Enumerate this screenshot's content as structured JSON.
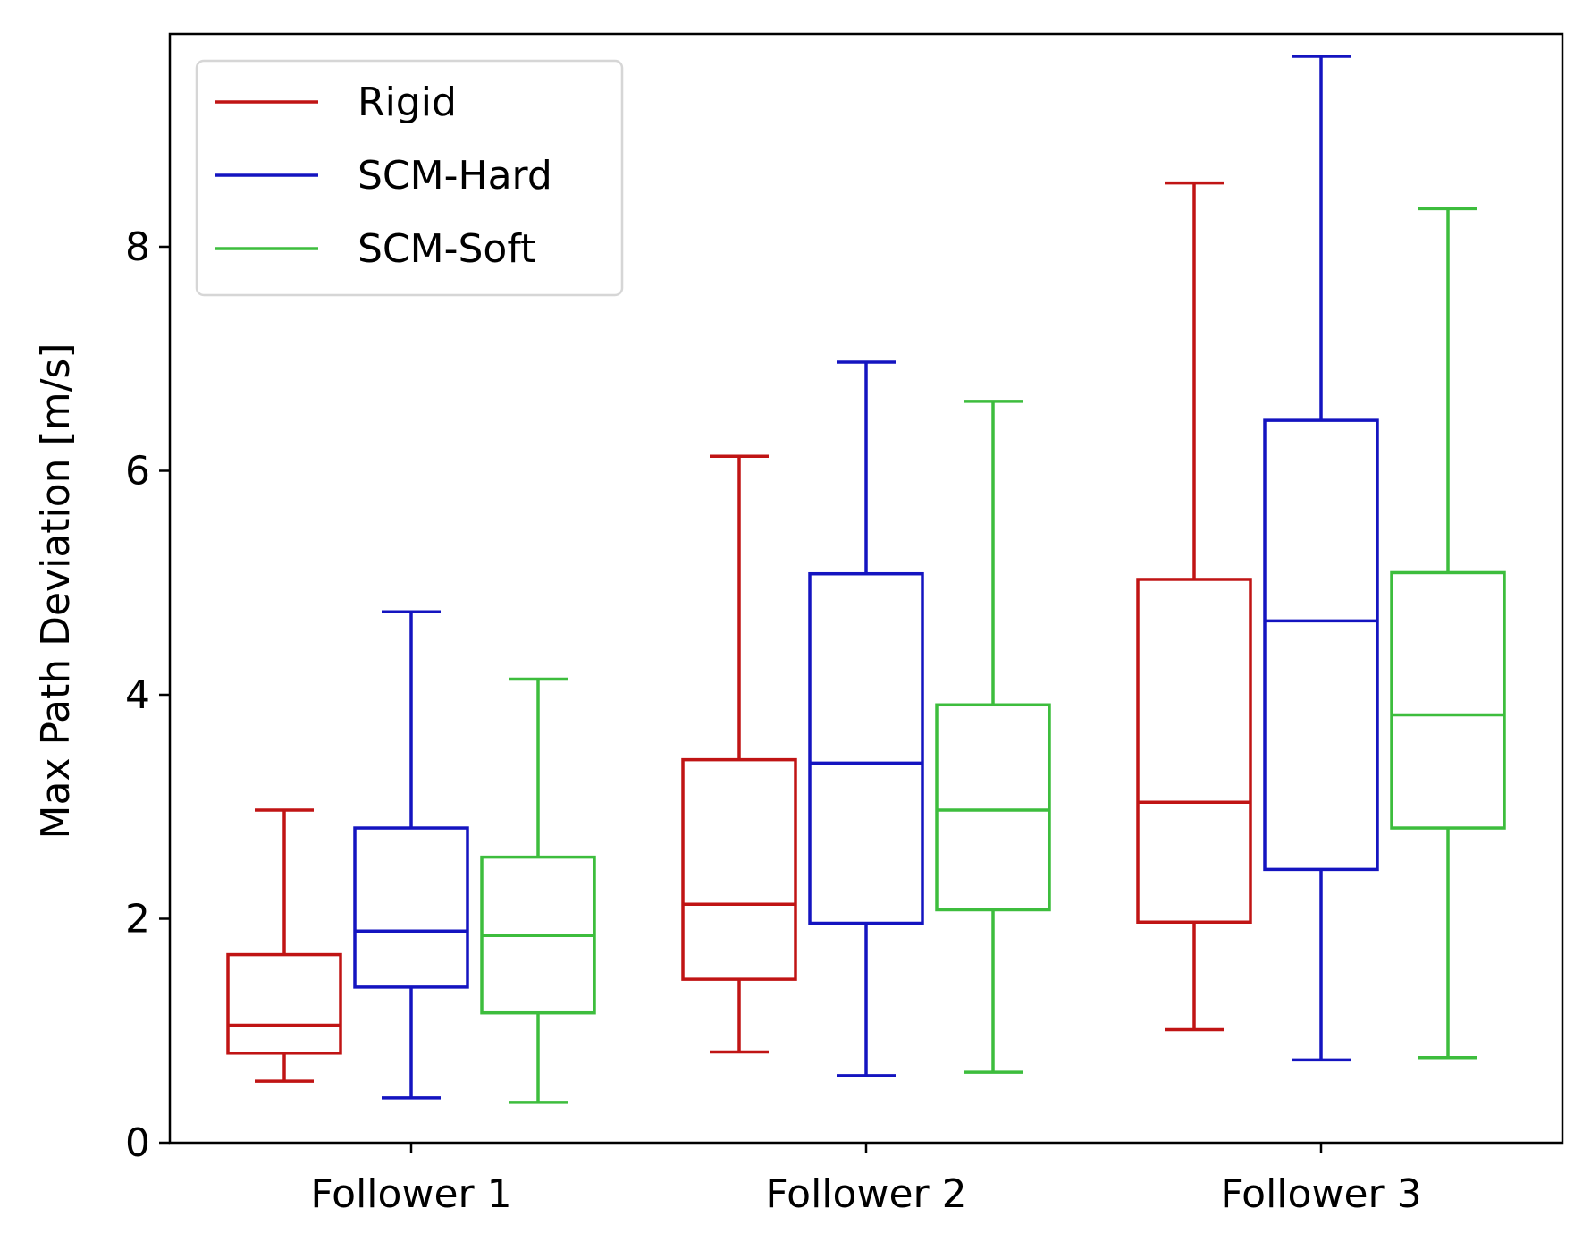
{
  "chart_data": {
    "type": "box",
    "categories": [
      "Follower 1",
      "Follower 2",
      "Follower 3"
    ],
    "title": "",
    "xlabel": "",
    "ylabel": "Max Path Deviation [m/s]",
    "ylim": [
      0,
      9.9
    ],
    "yticks": [
      0,
      2,
      4,
      6,
      8
    ],
    "grid": false,
    "legend_position": "top-left",
    "series": [
      {
        "name": "Rigid",
        "color": "#c01414",
        "boxes": [
          {
            "whisker_low": 0.55,
            "q1": 0.8,
            "median": 1.05,
            "q3": 1.68,
            "whisker_high": 2.97
          },
          {
            "whisker_low": 0.81,
            "q1": 1.46,
            "median": 2.13,
            "q3": 3.42,
            "whisker_high": 6.13
          },
          {
            "whisker_low": 1.01,
            "q1": 1.97,
            "median": 3.04,
            "q3": 5.03,
            "whisker_high": 8.57
          }
        ]
      },
      {
        "name": "SCM-Hard",
        "color": "#1414c0",
        "boxes": [
          {
            "whisker_low": 0.4,
            "q1": 1.39,
            "median": 1.89,
            "q3": 2.81,
            "whisker_high": 4.74
          },
          {
            "whisker_low": 0.6,
            "q1": 1.96,
            "median": 3.39,
            "q3": 5.08,
            "whisker_high": 6.97
          },
          {
            "whisker_low": 0.74,
            "q1": 2.44,
            "median": 4.66,
            "q3": 6.45,
            "whisker_high": 9.7
          }
        ]
      },
      {
        "name": "SCM-Soft",
        "color": "#3dbd3d",
        "boxes": [
          {
            "whisker_low": 0.36,
            "q1": 1.16,
            "median": 1.85,
            "q3": 2.55,
            "whisker_high": 4.14
          },
          {
            "whisker_low": 0.63,
            "q1": 2.08,
            "median": 2.97,
            "q3": 3.91,
            "whisker_high": 6.62
          },
          {
            "whisker_low": 0.76,
            "q1": 2.81,
            "median": 3.82,
            "q3": 5.09,
            "whisker_high": 8.34
          }
        ]
      }
    ]
  }
}
